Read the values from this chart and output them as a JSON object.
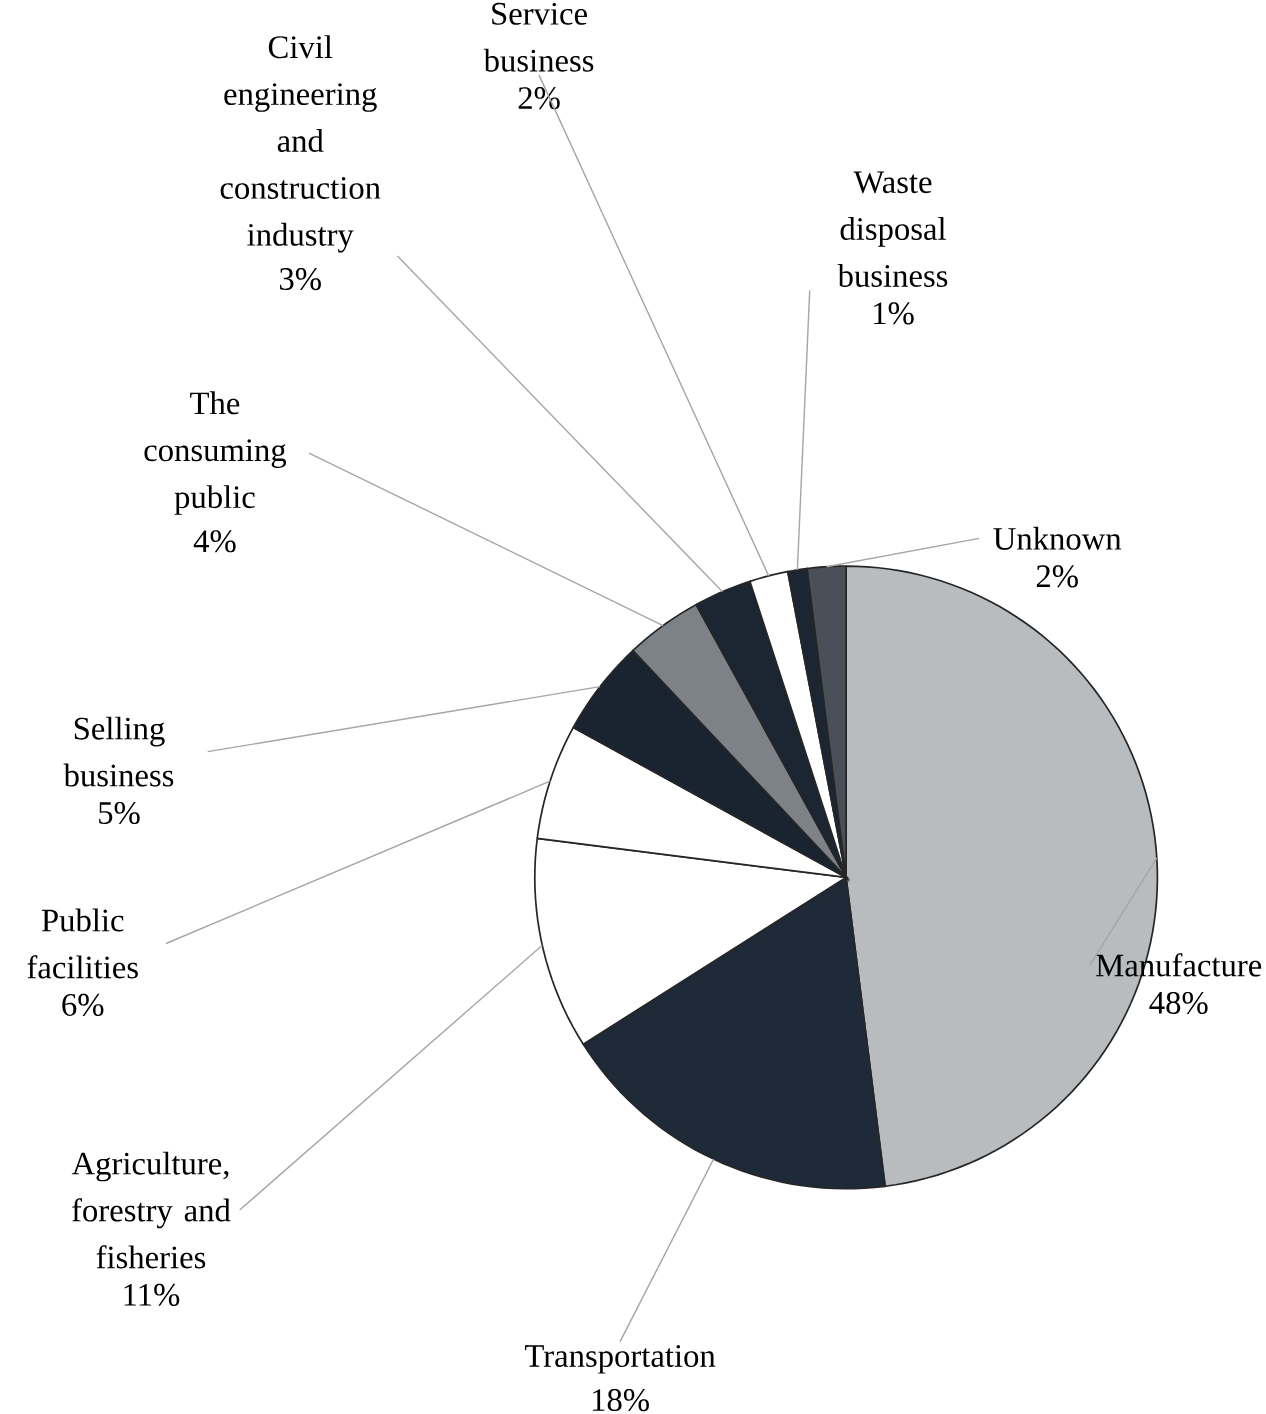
{
  "chart_data": {
    "type": "pie",
    "categories": [
      "Manufacture",
      "Transportation",
      "Agriculture, forestry and fisheries",
      "Public facilities",
      "Selling business",
      "The consuming public",
      "Civil engineering and construction industry",
      "Service business",
      "Waste disposal business",
      "Unknown"
    ],
    "values": [
      48,
      18,
      11,
      6,
      5,
      4,
      3,
      2,
      1,
      2
    ],
    "value_labels": [
      "48%",
      "18%",
      "11%",
      "6%",
      "5%",
      "4%",
      "3%",
      "2%",
      "1%",
      "2%"
    ],
    "colors": [
      "#b8bcbf",
      "#1f2a38",
      "#ffffff",
      "#ffffff",
      "#1a2430",
      "#7d8288",
      "#1c2633",
      "#ffffff",
      "#1c2633",
      "#4a5058"
    ]
  }
}
